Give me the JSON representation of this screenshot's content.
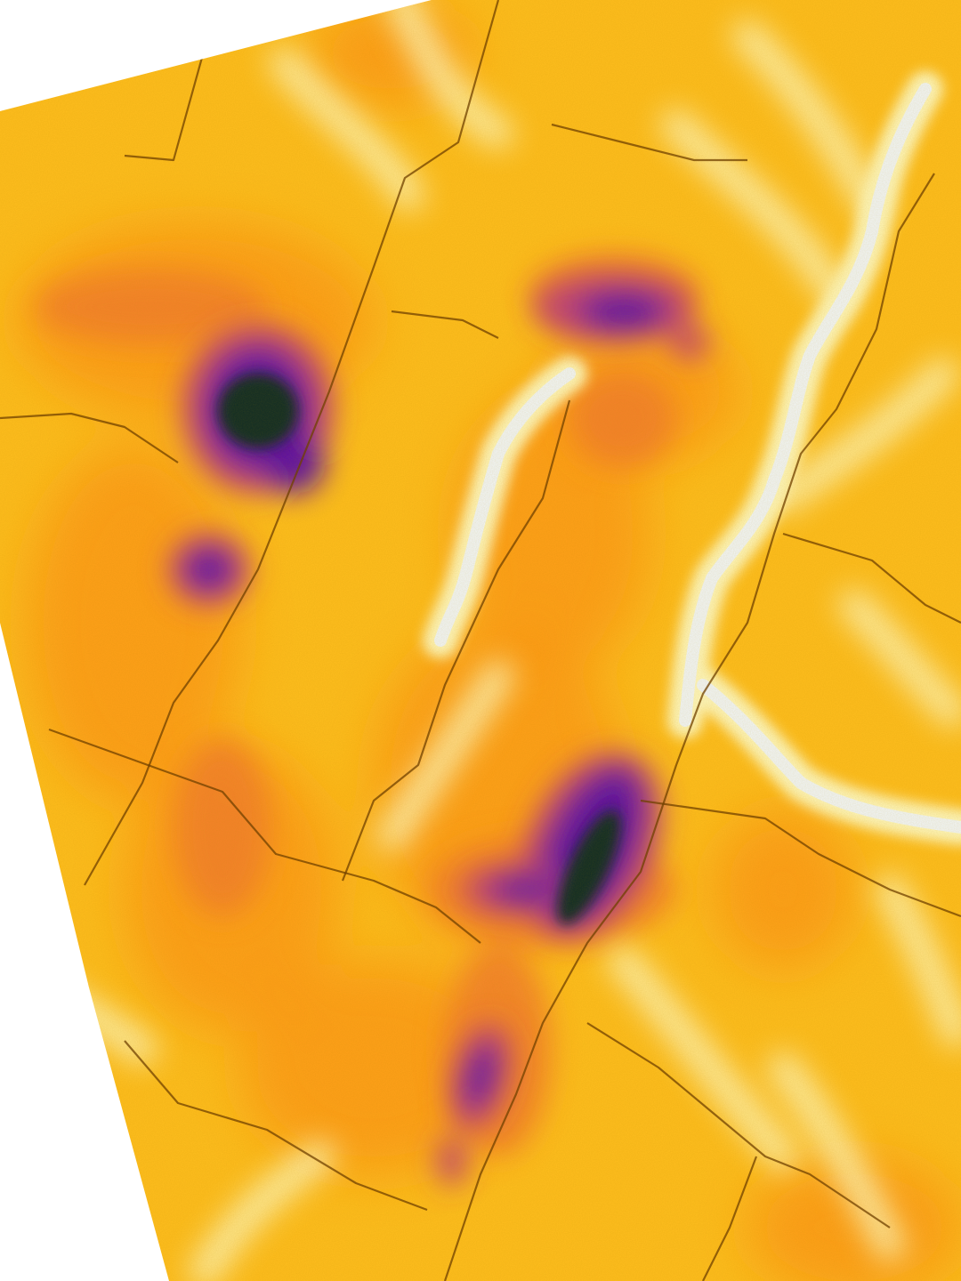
{
  "map": {
    "kind": "raster-heatmap",
    "colormap": "inferno",
    "colors": {
      "background": "#ffffff",
      "base": "#ffbe1e",
      "warm": "#ff9a18",
      "orange": "#f47f2e",
      "magenta": "#c0407a",
      "purple": "#7a1ea8",
      "violet": "#5a0ca8",
      "dark": "#0f2a26",
      "pale": "#fff8c0",
      "white": "#f2f7fb",
      "edge": "#6a3a00"
    },
    "icons": [
      "field-boundary-line",
      "high-value-blob",
      "low-value-channel"
    ],
    "features": {
      "hotspots": [
        {
          "id": "hotspot-northwest",
          "level": "max"
        },
        {
          "id": "hotspot-west-small",
          "level": "high"
        },
        {
          "id": "hotspot-north-center",
          "level": "mid-high"
        },
        {
          "id": "hotspot-center-east",
          "level": "max"
        },
        {
          "id": "hotspot-center-spur",
          "level": "high"
        },
        {
          "id": "hotspot-south",
          "level": "mid-high"
        }
      ],
      "channels": [
        {
          "id": "channel-east",
          "level": "min"
        },
        {
          "id": "channel-center",
          "level": "min"
        },
        {
          "id": "channel-lower-branch",
          "level": "min"
        }
      ]
    }
  }
}
